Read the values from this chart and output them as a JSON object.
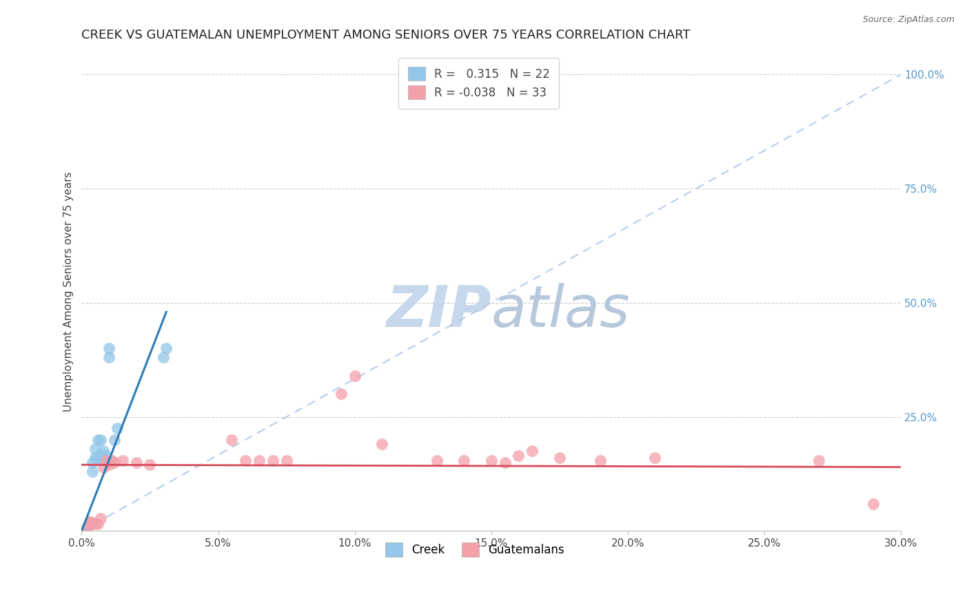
{
  "title": "CREEK VS GUATEMALAN UNEMPLOYMENT AMONG SENIORS OVER 75 YEARS CORRELATION CHART",
  "source": "Source: ZipAtlas.com",
  "ylabel": "Unemployment Among Seniors over 75 years",
  "xlim": [
    0.0,
    0.3
  ],
  "ylim": [
    0.0,
    1.05
  ],
  "xtick_labels": [
    "0.0%",
    "5.0%",
    "10.0%",
    "15.0%",
    "20.0%",
    "25.0%",
    "30.0%"
  ],
  "xtick_values": [
    0.0,
    0.05,
    0.1,
    0.15,
    0.2,
    0.25,
    0.3
  ],
  "ytick_labels": [
    "100.0%",
    "75.0%",
    "50.0%",
    "25.0%"
  ],
  "ytick_values": [
    1.0,
    0.75,
    0.5,
    0.25
  ],
  "creek_color": "#93c6e8",
  "guatemalan_color": "#f4a0a8",
  "creek_R": 0.315,
  "creek_N": 22,
  "guatemalan_R": -0.038,
  "guatemalan_N": 33,
  "creek_line_color": "#2c7bb6",
  "guatemalan_line_color": "#d4495a",
  "diagonal_color": "#aec7e8",
  "watermark_zip": "ZIP",
  "watermark_atlas": "atlas",
  "creek_x": [
    0.002,
    0.002,
    0.003,
    0.003,
    0.004,
    0.004,
    0.005,
    0.005,
    0.006,
    0.006,
    0.007,
    0.007,
    0.008,
    0.008,
    0.009,
    0.01,
    0.01,
    0.011,
    0.012,
    0.013,
    0.03,
    0.031
  ],
  "creek_y": [
    0.005,
    0.01,
    0.015,
    0.02,
    0.13,
    0.15,
    0.16,
    0.18,
    0.16,
    0.2,
    0.17,
    0.2,
    0.155,
    0.175,
    0.165,
    0.38,
    0.4,
    0.155,
    0.2,
    0.225,
    0.38,
    0.4
  ],
  "guatemalan_x": [
    0.002,
    0.003,
    0.004,
    0.005,
    0.006,
    0.007,
    0.008,
    0.009,
    0.01,
    0.011,
    0.012,
    0.015,
    0.02,
    0.025,
    0.055,
    0.06,
    0.065,
    0.07,
    0.075,
    0.095,
    0.1,
    0.11,
    0.13,
    0.14,
    0.15,
    0.155,
    0.16,
    0.165,
    0.175,
    0.19,
    0.21,
    0.27,
    0.29
  ],
  "guatemalan_y": [
    0.005,
    0.02,
    0.018,
    0.015,
    0.015,
    0.028,
    0.14,
    0.155,
    0.145,
    0.155,
    0.15,
    0.155,
    0.15,
    0.145,
    0.2,
    0.155,
    0.155,
    0.155,
    0.155,
    0.3,
    0.34,
    0.19,
    0.155,
    0.155,
    0.155,
    0.15,
    0.165,
    0.175,
    0.16,
    0.155,
    0.16,
    0.155,
    0.06
  ],
  "creek_line_x0": 0.0,
  "creek_line_y0": 0.0,
  "creek_line_x1": 0.031,
  "creek_line_y1": 0.48,
  "guat_line_x0": 0.0,
  "guat_line_y0": 0.145,
  "guat_line_x1": 0.3,
  "guat_line_y1": 0.14,
  "background_color": "#ffffff",
  "grid_color": "#cccccc"
}
